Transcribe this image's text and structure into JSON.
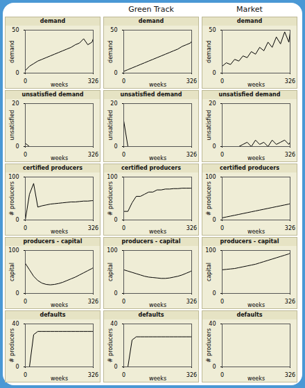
{
  "columns": [
    null,
    "Green Track",
    "Market"
  ],
  "chart_data": [
    {
      "type": "line",
      "title": "demand",
      "x_label": "weeks",
      "y_label": "demand",
      "x": [
        0,
        20,
        40,
        60,
        80,
        100,
        120,
        140,
        160,
        180,
        200,
        220,
        240,
        260,
        280,
        300,
        320,
        326
      ],
      "xlim": [
        0,
        326
      ],
      "xticks": [
        0,
        326
      ],
      "ylim": [
        0,
        50
      ],
      "yticks": [
        0,
        50
      ],
      "color": "#000000",
      "values": [
        3,
        8,
        11,
        14,
        16,
        18,
        20,
        22,
        24,
        26,
        28,
        30,
        33,
        35,
        40,
        33,
        36,
        40
      ]
    },
    {
      "type": "line",
      "title": "demand",
      "x_label": "weeks",
      "y_label": "demand",
      "x": [
        0,
        20,
        40,
        60,
        80,
        100,
        120,
        140,
        160,
        180,
        200,
        220,
        240,
        260,
        280,
        300,
        320,
        326
      ],
      "xlim": [
        0,
        326
      ],
      "xticks": [
        0,
        326
      ],
      "ylim": [
        0,
        50
      ],
      "yticks": [
        0,
        50
      ],
      "color": "#000000",
      "values": [
        2,
        4,
        6,
        8,
        10,
        12,
        14,
        16,
        18,
        20,
        22,
        24,
        26,
        28,
        31,
        33,
        35,
        37
      ]
    },
    {
      "type": "line",
      "title": "demand",
      "x_label": "weeks",
      "y_label": "demand",
      "x": [
        0,
        20,
        40,
        60,
        80,
        100,
        120,
        140,
        160,
        180,
        200,
        220,
        240,
        260,
        280,
        300,
        320,
        326
      ],
      "xlim": [
        0,
        326
      ],
      "xticks": [
        0,
        326
      ],
      "ylim": [
        0,
        50
      ],
      "yticks": [
        0,
        50
      ],
      "color": "#000000",
      "values": [
        8,
        12,
        10,
        16,
        14,
        20,
        18,
        25,
        22,
        30,
        26,
        36,
        30,
        42,
        34,
        48,
        36,
        47
      ]
    },
    {
      "type": "line",
      "title": "unsatisfied demand",
      "x_label": "weeks",
      "y_label": "unsatisfied",
      "x": [
        0,
        20,
        40,
        60,
        80,
        100,
        120,
        140,
        160,
        180,
        200,
        220,
        240,
        260,
        280,
        300,
        320,
        326
      ],
      "xlim": [
        0,
        326
      ],
      "xticks": [
        0,
        326
      ],
      "ylim": [
        0,
        20
      ],
      "yticks": [
        0,
        20
      ],
      "color": "#000000",
      "values": [
        1.5,
        0,
        0,
        0,
        0,
        0,
        0,
        0,
        0,
        0,
        0,
        0,
        0,
        0,
        0,
        0,
        0,
        0
      ]
    },
    {
      "type": "line",
      "title": "unsatisfied demand",
      "x_label": "weeks",
      "y_label": "unsatisfied",
      "x": [
        0,
        20,
        40,
        60,
        80,
        100,
        120,
        140,
        160,
        180,
        200,
        220,
        240,
        260,
        280,
        300,
        320,
        326
      ],
      "xlim": [
        0,
        326
      ],
      "xticks": [
        0,
        326
      ],
      "ylim": [
        0,
        20
      ],
      "yticks": [
        0,
        20
      ],
      "color": "#000000",
      "values": [
        12,
        0,
        0,
        0,
        0,
        0,
        0,
        0,
        0,
        0,
        0,
        0,
        0,
        0,
        0,
        0,
        0,
        0
      ]
    },
    {
      "type": "line",
      "title": "unsatisfied demand",
      "x_label": "weeks",
      "y_label": "unsatisfied",
      "x": [
        0,
        20,
        40,
        60,
        80,
        100,
        120,
        140,
        160,
        180,
        200,
        220,
        240,
        260,
        280,
        300,
        320,
        326
      ],
      "xlim": [
        0,
        326
      ],
      "xticks": [
        0,
        326
      ],
      "ylim": [
        0,
        20
      ],
      "yticks": [
        0,
        20
      ],
      "color": "#000000",
      "values": [
        0,
        0,
        0,
        0,
        0,
        1,
        2,
        0,
        3,
        1,
        2,
        0,
        3,
        1,
        2,
        3,
        1,
        2
      ]
    },
    {
      "type": "line",
      "title": "certified producers",
      "x_label": "weeks",
      "y_label": "# producers",
      "x": [
        0,
        20,
        40,
        60,
        80,
        100,
        120,
        140,
        160,
        180,
        200,
        220,
        240,
        260,
        280,
        300,
        320,
        326
      ],
      "xlim": [
        0,
        326
      ],
      "xticks": [
        0,
        326
      ],
      "ylim": [
        0,
        100
      ],
      "yticks": [
        0,
        100
      ],
      "color": "#000000",
      "values": [
        0,
        60,
        85,
        30,
        33,
        35,
        37,
        38,
        39,
        40,
        41,
        42,
        42,
        43,
        44,
        44,
        45,
        45
      ]
    },
    {
      "type": "line",
      "title": "certified producers",
      "x_label": "weeks",
      "y_label": "# producers",
      "x": [
        0,
        20,
        40,
        60,
        80,
        100,
        120,
        140,
        160,
        180,
        200,
        220,
        240,
        260,
        280,
        300,
        320,
        326
      ],
      "xlim": [
        0,
        326
      ],
      "xticks": [
        0,
        326
      ],
      "ylim": [
        0,
        100
      ],
      "yticks": [
        0,
        100
      ],
      "color": "#000000",
      "values": [
        20,
        20,
        40,
        55,
        55,
        60,
        65,
        65,
        70,
        70,
        72,
        72,
        73,
        73,
        74,
        74,
        74,
        74
      ]
    },
    {
      "type": "line",
      "title": "certified producers",
      "x_label": "weeks",
      "y_label": "# producers",
      "x": [
        0,
        20,
        40,
        60,
        80,
        100,
        120,
        140,
        160,
        180,
        200,
        220,
        240,
        260,
        280,
        300,
        320,
        326
      ],
      "xlim": [
        0,
        326
      ],
      "xticks": [
        0,
        326
      ],
      "ylim": [
        0,
        100
      ],
      "yticks": [
        0,
        100
      ],
      "color": "#000000",
      "values": [
        5,
        7,
        9,
        11,
        13,
        15,
        17,
        19,
        21,
        23,
        25,
        27,
        29,
        31,
        33,
        35,
        37,
        38
      ]
    },
    {
      "type": "line",
      "title": "producers - capital",
      "x_label": "weeks",
      "y_label": "capital",
      "x": [
        0,
        20,
        40,
        60,
        80,
        100,
        120,
        140,
        160,
        180,
        200,
        220,
        240,
        260,
        280,
        300,
        320,
        326
      ],
      "xlim": [
        0,
        326
      ],
      "xticks": [
        0,
        326
      ],
      "ylim": [
        0,
        100
      ],
      "yticks": [
        0,
        100
      ],
      "color": "#000000",
      "values": [
        70,
        55,
        40,
        30,
        24,
        21,
        20,
        21,
        23,
        26,
        30,
        34,
        38,
        43,
        48,
        53,
        58,
        60
      ]
    },
    {
      "type": "line",
      "title": "producers - capital",
      "x_label": "weeks",
      "y_label": "capital",
      "x": [
        0,
        20,
        40,
        60,
        80,
        100,
        120,
        140,
        160,
        180,
        200,
        220,
        240,
        260,
        280,
        300,
        320,
        326
      ],
      "xlim": [
        0,
        326
      ],
      "xticks": [
        0,
        326
      ],
      "ylim": [
        0,
        100
      ],
      "yticks": [
        0,
        100
      ],
      "color": "#000000",
      "values": [
        55,
        52,
        49,
        46,
        43,
        40,
        38,
        37,
        36,
        35,
        35,
        36,
        38,
        40,
        43,
        47,
        51,
        53
      ]
    },
    {
      "type": "line",
      "title": "producers - capital",
      "x_label": "weeks",
      "y_label": "capital",
      "x": [
        0,
        20,
        40,
        60,
        80,
        100,
        120,
        140,
        160,
        180,
        200,
        220,
        240,
        260,
        280,
        300,
        320,
        326
      ],
      "xlim": [
        0,
        326
      ],
      "xticks": [
        0,
        326
      ],
      "ylim": [
        0,
        100
      ],
      "yticks": [
        0,
        100
      ],
      "color": "#000000",
      "values": [
        55,
        56,
        57,
        58,
        60,
        62,
        64,
        66,
        68,
        71,
        74,
        77,
        80,
        83,
        86,
        89,
        92,
        94
      ]
    },
    {
      "type": "line",
      "title": "defaults",
      "x_label": "weeks",
      "y_label": "# producers",
      "x": [
        0,
        20,
        40,
        60,
        80,
        100,
        120,
        140,
        160,
        180,
        200,
        220,
        240,
        260,
        280,
        300,
        320,
        326
      ],
      "xlim": [
        0,
        326
      ],
      "xticks": [
        0,
        326
      ],
      "ylim": [
        0,
        40
      ],
      "yticks": [
        0,
        40
      ],
      "color": "#000000",
      "values": [
        0,
        0,
        30,
        33,
        33,
        33,
        33,
        33,
        33,
        33,
        33,
        33,
        33,
        33,
        33,
        33,
        33,
        33
      ]
    },
    {
      "type": "line",
      "title": "defaults",
      "x_label": "weeks",
      "y_label": "# producers",
      "x": [
        0,
        20,
        40,
        60,
        80,
        100,
        120,
        140,
        160,
        180,
        200,
        220,
        240,
        260,
        280,
        300,
        320,
        326
      ],
      "xlim": [
        0,
        326
      ],
      "xticks": [
        0,
        326
      ],
      "ylim": [
        0,
        40
      ],
      "yticks": [
        0,
        40
      ],
      "color": "#000000",
      "values": [
        0,
        0,
        25,
        28,
        28,
        28,
        28,
        28,
        28,
        28,
        28,
        28,
        28,
        28,
        28,
        28,
        28,
        28
      ]
    },
    {
      "type": "line",
      "title": "defaults",
      "x_label": "weeks",
      "y_label": "# producers",
      "x": [
        0,
        20,
        40,
        60,
        80,
        100,
        120,
        140,
        160,
        180,
        200,
        220,
        240,
        260,
        280,
        300,
        320,
        326
      ],
      "xlim": [
        0,
        326
      ],
      "xticks": [
        0,
        326
      ],
      "ylim": [
        0,
        40
      ],
      "yticks": [
        0,
        40
      ],
      "color": "#000000",
      "values": [
        0,
        0,
        0,
        0,
        0,
        0,
        0,
        0,
        0,
        0,
        0,
        0,
        0,
        0,
        0,
        0,
        0,
        0
      ]
    }
  ]
}
